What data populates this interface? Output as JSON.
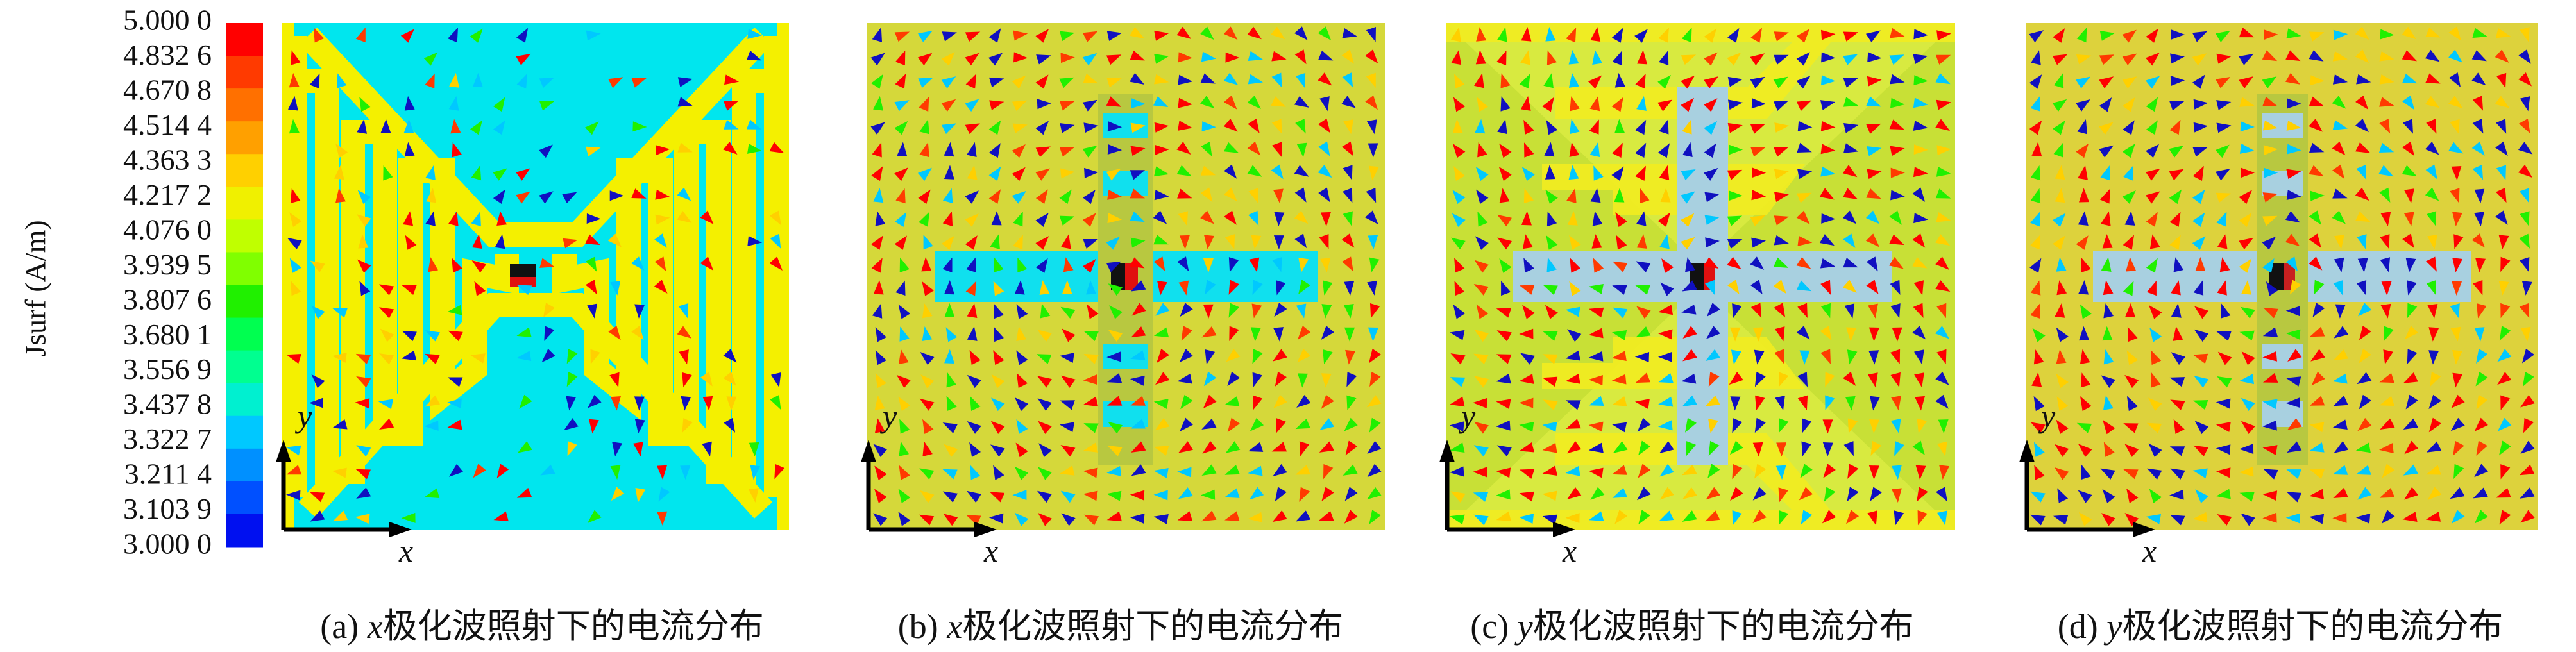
{
  "colorbar": {
    "label": "Jsurf (A/m)",
    "ticks": [
      "5.000 0",
      "4.832 6",
      "4.670 8",
      "4.514 4",
      "4.363 3",
      "4.217 2",
      "4.076 0",
      "3.939 5",
      "3.807 6",
      "3.680 1",
      "3.556 9",
      "3.437 8",
      "3.322 7",
      "3.211 4",
      "3.103 9",
      "3.000 0"
    ],
    "colors": [
      "#ff0000",
      "#ff3a00",
      "#ff7000",
      "#ffa000",
      "#ffd000",
      "#f0f000",
      "#c0ff00",
      "#80ff00",
      "#20f000",
      "#00ff50",
      "#00ff90",
      "#00f0d0",
      "#00c8ff",
      "#0090ff",
      "#0050ff",
      "#0010f0"
    ]
  },
  "panels": [
    {
      "tag": "(a)",
      "pol": "x",
      "text": "极化波照射下的电流分布",
      "x_axis": "x",
      "y_axis": "y"
    },
    {
      "tag": "(b)",
      "pol": "x",
      "text": "极化波照射下的电流分布",
      "x_axis": "x",
      "y_axis": "y"
    },
    {
      "tag": "(c)",
      "pol": "y",
      "text": "极化波照射下的电流分布",
      "x_axis": "x",
      "y_axis": "y"
    },
    {
      "tag": "(d)",
      "pol": "y",
      "text": "极化波照射下的电流分布",
      "x_axis": "x",
      "y_axis": "y"
    }
  ]
}
